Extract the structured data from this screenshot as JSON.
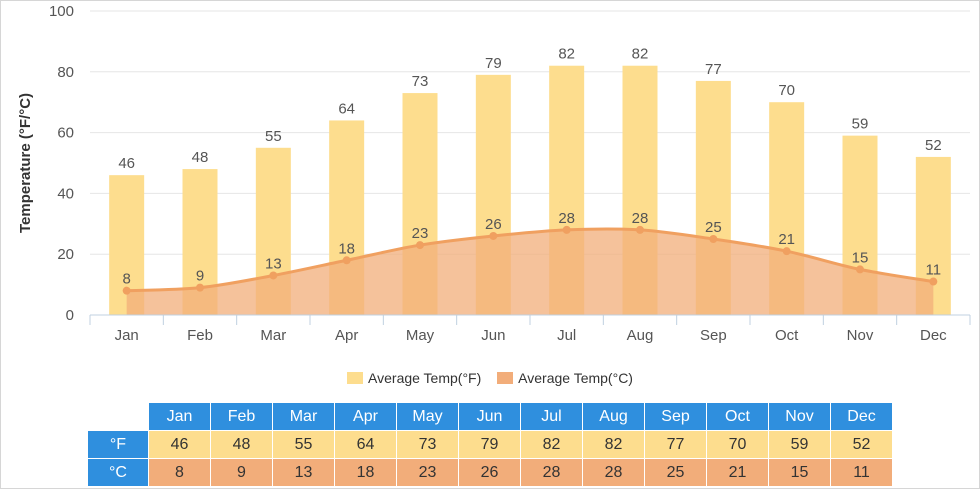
{
  "chart_data": {
    "type": "bar",
    "categories": [
      "Jan",
      "Feb",
      "Mar",
      "Apr",
      "May",
      "Jun",
      "Jul",
      "Aug",
      "Sep",
      "Oct",
      "Nov",
      "Dec"
    ],
    "series": [
      {
        "name": "Average Temp(°F)",
        "type": "bar",
        "color": "#fddd8e",
        "values": [
          46,
          48,
          55,
          64,
          73,
          79,
          82,
          82,
          77,
          70,
          59,
          52
        ]
      },
      {
        "name": "Average Temp(°C)",
        "type": "area",
        "color": "#f2ad7a",
        "values": [
          8,
          9,
          13,
          18,
          23,
          26,
          28,
          28,
          25,
          21,
          15,
          11
        ]
      }
    ],
    "ylabel": "Temperature (°F/°C)",
    "xlabel": "",
    "ylim": [
      0,
      100
    ],
    "yticks": [
      0,
      20,
      40,
      60,
      80,
      100
    ],
    "grid": true,
    "legend": "bottom-center"
  },
  "legend": {
    "fahrenheit": "Average Temp(°F)",
    "celsius": "Average Temp(°C)"
  },
  "table": {
    "row_labels": {
      "f": "°F",
      "c": "°C"
    }
  }
}
